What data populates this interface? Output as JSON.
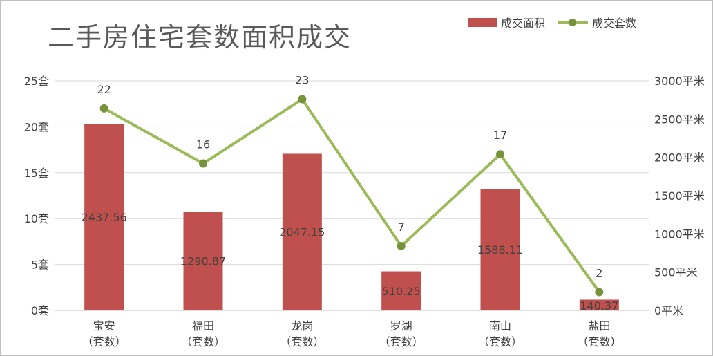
{
  "title": "二手房住宅套数面积成交",
  "legend": {
    "bar_label": "成交面积",
    "line_label": "成交套数"
  },
  "colors": {
    "bar": "#c0504d",
    "line": "#9bbb59",
    "marker": "#76933c",
    "grid": "#d9d9d9",
    "text": "#404040"
  },
  "chart_data": {
    "type": "bar",
    "title": "二手房住宅套数面积成交",
    "categories": [
      "宝安\n（套数）",
      "福田\n（套数）",
      "龙岗\n（套数）",
      "罗湖\n（套数）",
      "南山\n（套数）",
      "盐田\n（套数）"
    ],
    "series": [
      {
        "name": "成交面积",
        "type": "bar",
        "axis": "right",
        "values": [
          2437.56,
          1290.87,
          2047.15,
          510.25,
          1588.11,
          140.37
        ],
        "labels": [
          "2437.56",
          "1290.87",
          "2047.15",
          "510.25",
          "1588.11",
          "140.37"
        ]
      },
      {
        "name": "成交套数",
        "type": "line",
        "axis": "left",
        "values": [
          22,
          16,
          23,
          7,
          17,
          2
        ],
        "labels": [
          "22",
          "16",
          "23",
          "7",
          "17",
          "2"
        ]
      }
    ],
    "y_left": {
      "ylim": [
        0,
        25
      ],
      "ticks": [
        0,
        5,
        10,
        15,
        20,
        25
      ],
      "tick_labels": [
        "0套",
        "5套",
        "10套",
        "15套",
        "20套",
        "25套"
      ]
    },
    "y_right": {
      "ylim": [
        0,
        3000
      ],
      "ticks": [
        0,
        500,
        1000,
        1500,
        2000,
        2500,
        3000
      ],
      "tick_labels": [
        "0平米",
        "500平米",
        "1000平米",
        "1500平米",
        "2000平米",
        "2500平米",
        "3000平米"
      ]
    },
    "grid": true,
    "legend_position": "top-right"
  }
}
